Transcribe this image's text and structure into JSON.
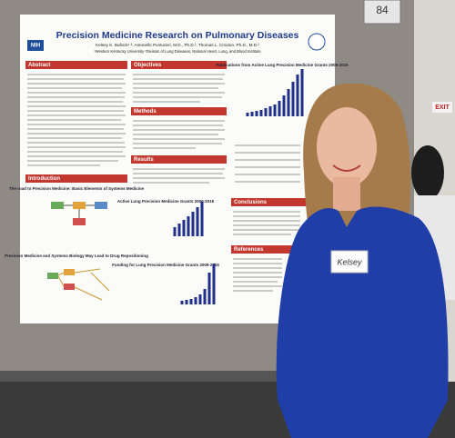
{
  "board_number": "84",
  "exit_sign": "EXIT",
  "name_tag": "Kelsey",
  "poster": {
    "logo": "NIH",
    "title": "Precision Medicine Research on Pulmonary Diseases",
    "authors": "Kelsey K. Bullock¹·², Antonello Punturieri, M.D., Ph.D.², Thomas L. Croxton, Ph.D., M.D.²",
    "affiliations": "¹Western Kentucky University ²Division of Lung Diseases, National Heart, Lung, and Blood Institute",
    "sections": {
      "abstract": "Abstract",
      "objectives": "Objectives",
      "methods": "Methods",
      "results": "Results",
      "introduction": "Introduction",
      "conclusions": "Conclusions",
      "references": "References"
    },
    "figures": {
      "road": "The road to Precision Medicine: Basic Elements of Systems Medicine",
      "repositioning": "Precision Medicine and Systems Biology May Lead to Drug Repositioning",
      "grants": "Active Lung Precision Medicine Grants 2009-2015",
      "funding": "Funding for Lung Precision Medicine Grants 2009-2015",
      "publications": "Publications from Active Lung Precision Medicine Grants 2009-2015"
    }
  }
}
